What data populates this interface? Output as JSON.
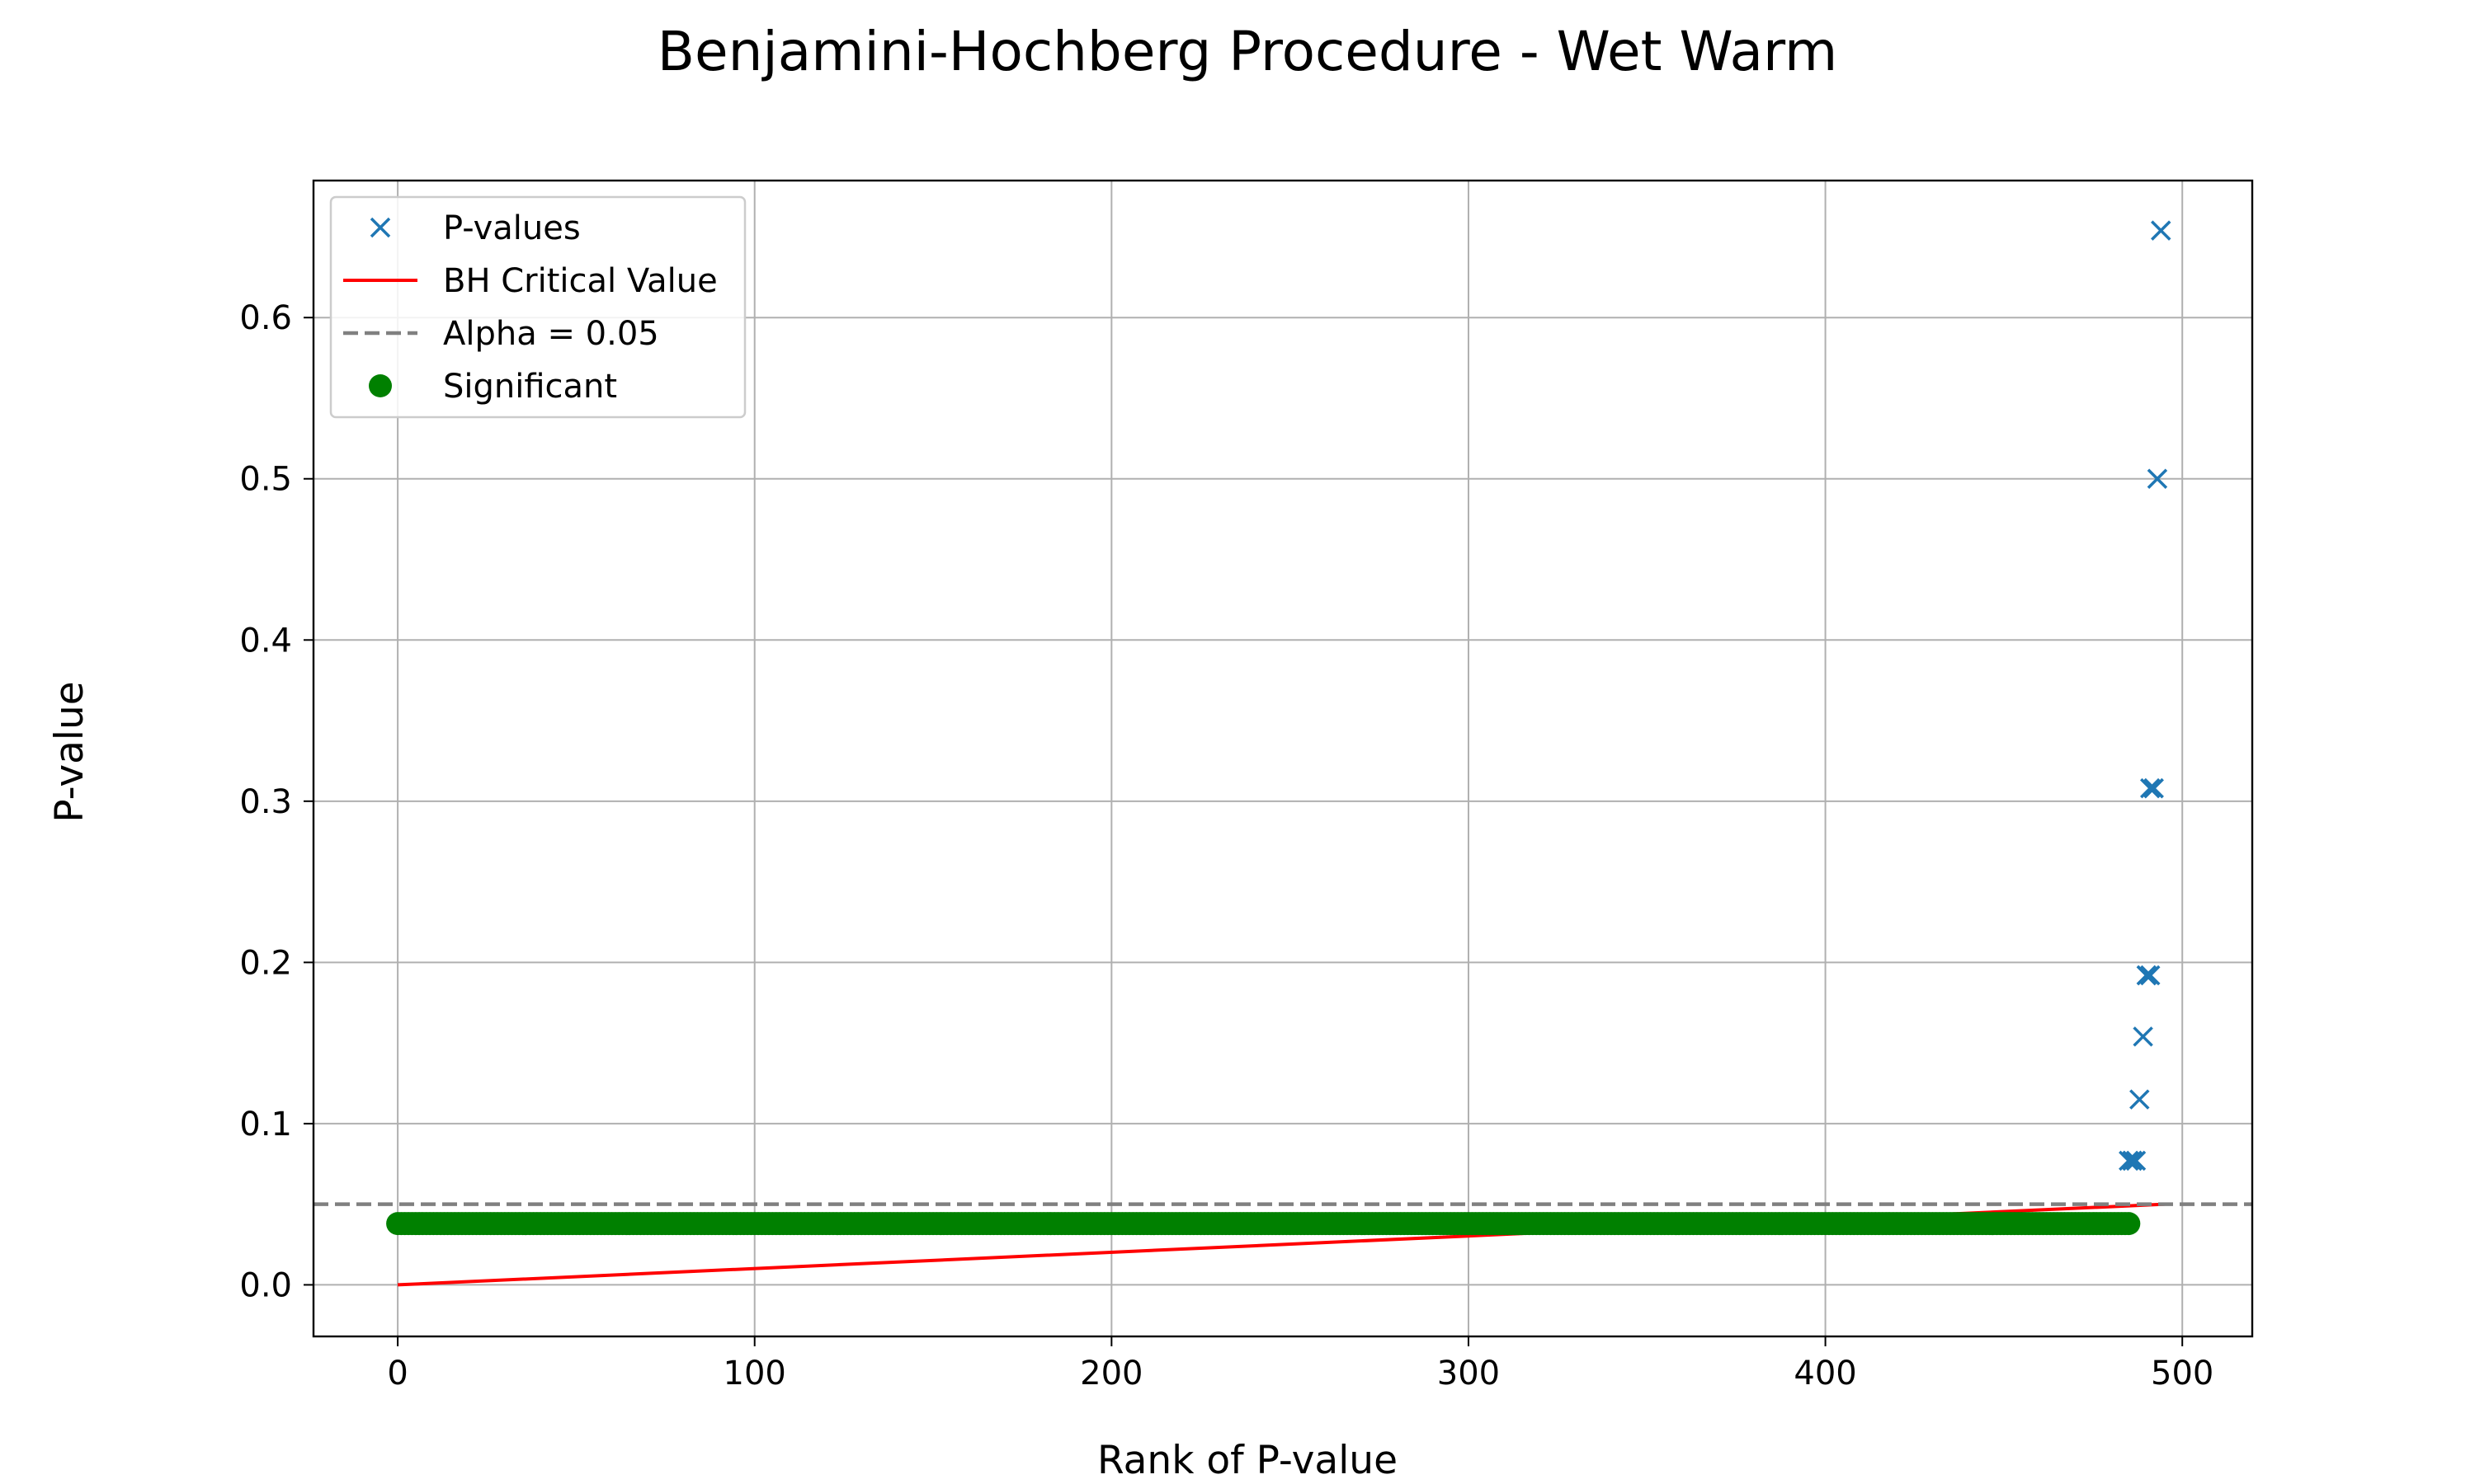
{
  "chart_data": {
    "type": "scatter",
    "title": "Benjamini-Hochberg Procedure - Wet Warm",
    "xlabel": "Rank of P-value",
    "ylabel": "P-value",
    "xlim": [
      -23.6,
      519.6
    ],
    "ylim": [
      -0.032,
      0.685
    ],
    "xticks": [
      0,
      100,
      200,
      300,
      400,
      500
    ],
    "xtick_labels": [
      "0",
      "100",
      "200",
      "300",
      "400",
      "500"
    ],
    "yticks": [
      0.0,
      0.1,
      0.2,
      0.3,
      0.4,
      0.5,
      0.6
    ],
    "ytick_labels": [
      "0.0",
      "0.1",
      "0.2",
      "0.3",
      "0.4",
      "0.5",
      "0.6"
    ],
    "grid": true,
    "legend_position": "top-left",
    "legend": [
      "P-values",
      "BH Critical Value",
      "Alpha = 0.05",
      "Significant"
    ],
    "colors": {
      "pvalues": "#1f77b4",
      "bh_line": "#ff0000",
      "alpha_line": "#808080",
      "significant": "#008000",
      "grid": "#b0b0b0"
    },
    "alpha": 0.05,
    "n_tests": 495,
    "bh_line": {
      "x": [
        0,
        495
      ],
      "y": [
        0.0,
        0.05
      ]
    },
    "significant": {
      "x_start": 0,
      "x_end": 485,
      "y": 0.038
    },
    "pvalues_above": {
      "x": [
        485,
        486,
        486,
        487,
        488,
        489,
        490,
        490,
        491,
        491,
        492,
        492,
        493,
        494
      ],
      "y": [
        0.077,
        0.077,
        0.077,
        0.077,
        0.115,
        0.154,
        0.192,
        0.192,
        0.192,
        0.308,
        0.308,
        0.308,
        0.5,
        0.654
      ]
    }
  }
}
